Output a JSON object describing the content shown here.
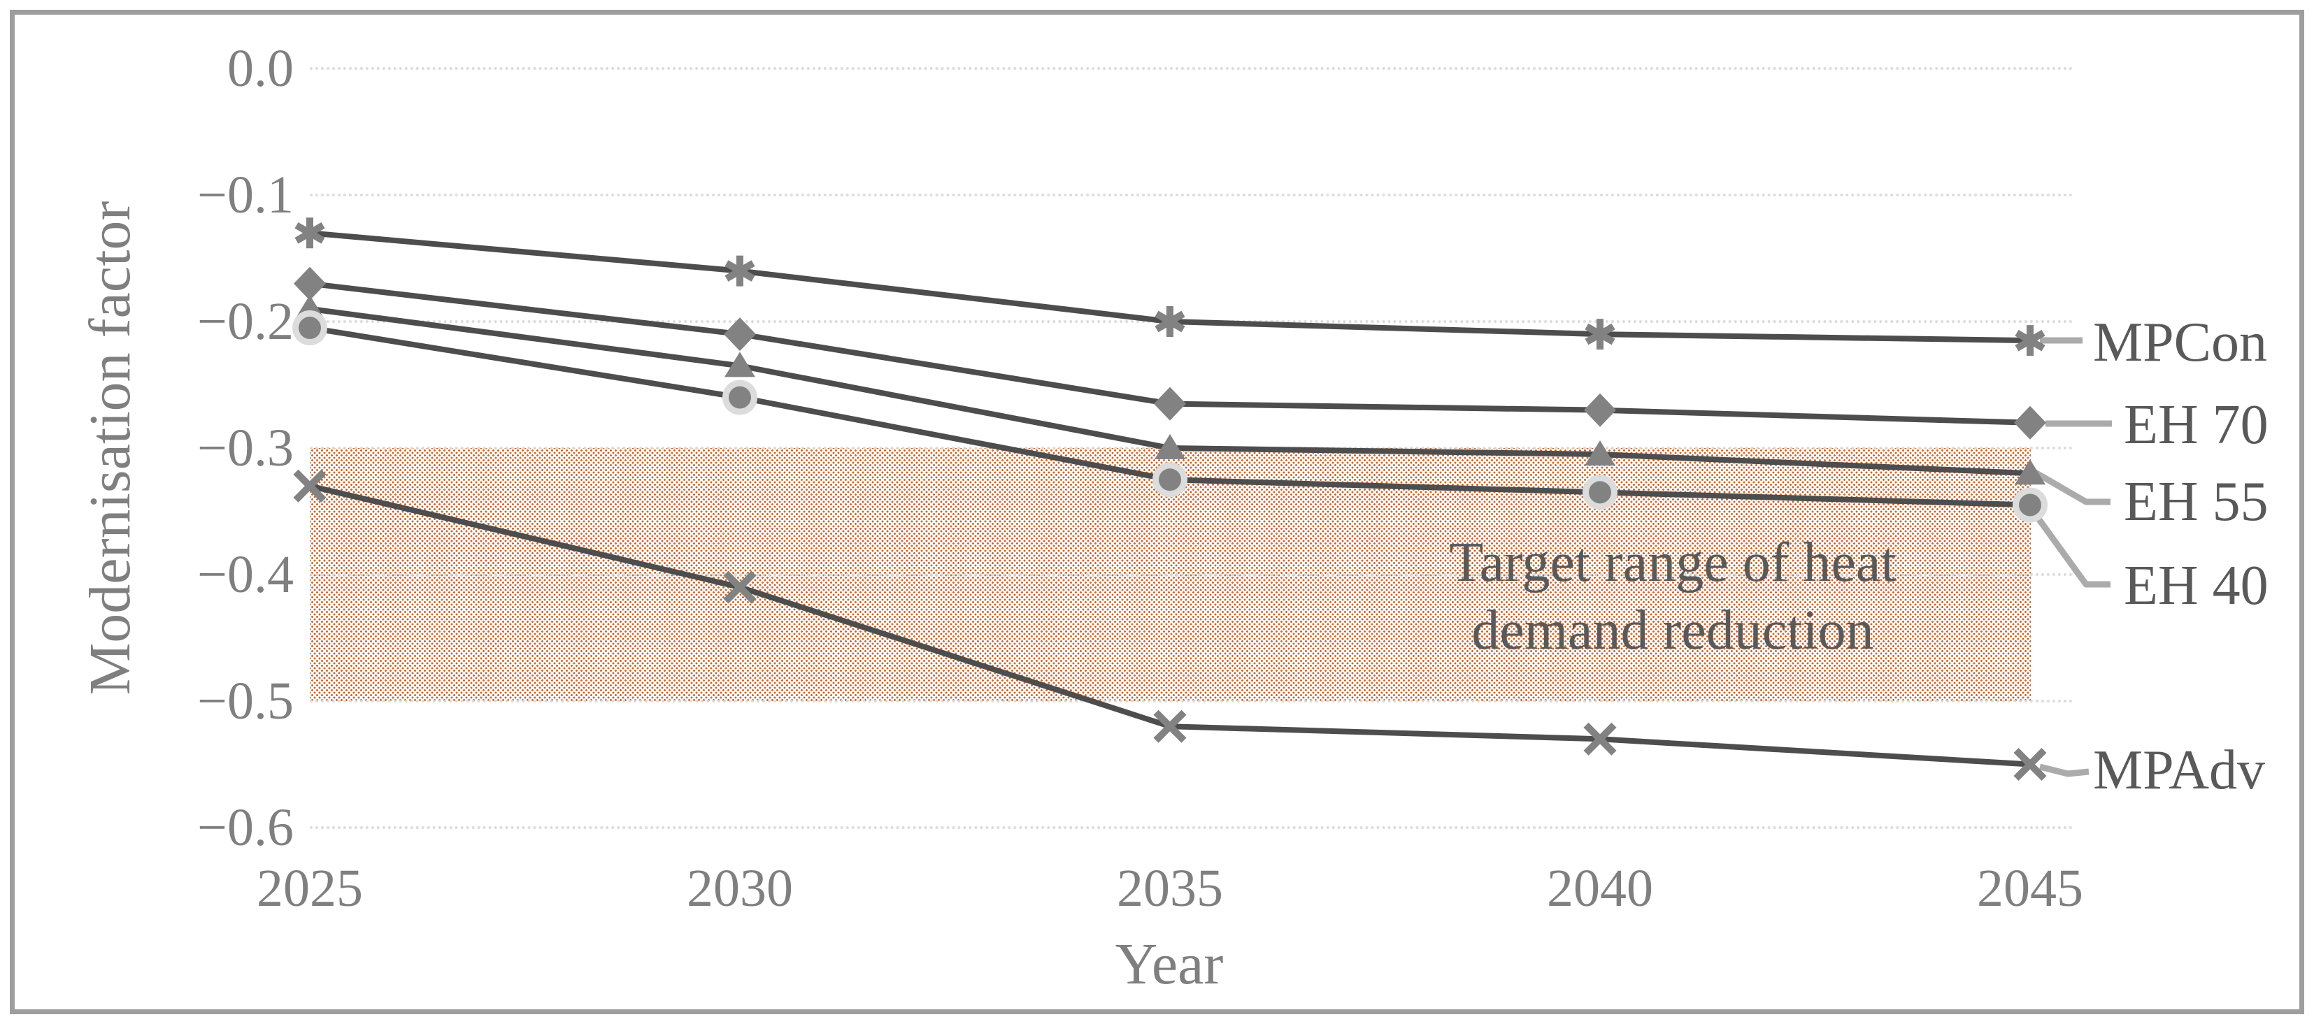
{
  "chart_data": {
    "type": "line",
    "x": [
      2025,
      2030,
      2035,
      2040,
      2045
    ],
    "x_labels": [
      "2025",
      "2030",
      "2035",
      "2040",
      "2045"
    ],
    "xlabel": "Year",
    "ylabel": "Modernisation factor",
    "ylim": [
      -0.6,
      0.0
    ],
    "yticks": [
      "0.0",
      "−0.1",
      "−0.2",
      "−0.3",
      "−0.4",
      "−0.5",
      "−0.6"
    ],
    "ytick_values": [
      0,
      -0.1,
      -0.2,
      -0.3,
      -0.4,
      -0.5,
      -0.6
    ],
    "grid": "horizontal-dotted",
    "legend_position": "right-of-last-point",
    "series": [
      {
        "name": "MPCon",
        "marker": "asterisk",
        "values": [
          -0.13,
          -0.16,
          -0.2,
          -0.21,
          -0.215
        ]
      },
      {
        "name": "EH 70",
        "marker": "diamond",
        "values": [
          -0.17,
          -0.21,
          -0.265,
          -0.27,
          -0.28
        ]
      },
      {
        "name": "EH 55",
        "marker": "triangle",
        "values": [
          -0.19,
          -0.235,
          -0.3,
          -0.305,
          -0.32
        ]
      },
      {
        "name": "EH 40",
        "marker": "circle",
        "values": [
          -0.205,
          -0.26,
          -0.325,
          -0.335,
          -0.345
        ]
      },
      {
        "name": "MPAdv",
        "marker": "x",
        "values": [
          -0.33,
          -0.41,
          -0.52,
          -0.53,
          -0.55
        ]
      }
    ],
    "band": {
      "from": -0.3,
      "to": -0.5,
      "label_line1": "Target range of heat",
      "label_line2": "demand reduction"
    }
  },
  "colors": {
    "series_line": "#4d4d4d",
    "marker": "#828282",
    "marker_halo": "#dcdcdc",
    "leader_line": "#ababab",
    "gridline": "#d9d9d9",
    "band_dot": "#c9642a",
    "axis_text": "#7f7f7f",
    "dark_text": "#595959",
    "frame_border": "#9e9e9e"
  }
}
